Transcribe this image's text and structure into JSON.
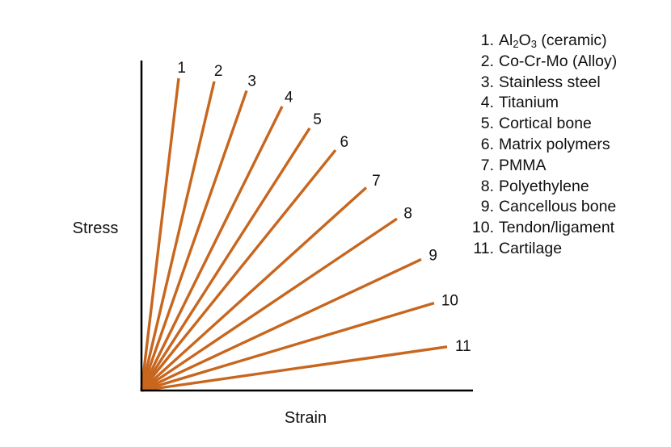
{
  "chart_data": {
    "type": "line",
    "xlabel": "Strain",
    "ylabel": "Stress",
    "colors": {
      "series": "#C8661E",
      "axis": "#000000",
      "text": "#111111"
    },
    "series": [
      {
        "label": "1",
        "name": "Al2O3 (ceramic)",
        "x": 0.23,
        "y": 1.0
      },
      {
        "label": "2",
        "name": "Co-Cr-Mo (Alloy)",
        "x": 0.45,
        "y": 0.99
      },
      {
        "label": "3",
        "name": "Stainless steel",
        "x": 0.65,
        "y": 0.96
      },
      {
        "label": "4",
        "name": "Titanium",
        "x": 0.87,
        "y": 0.91
      },
      {
        "label": "5",
        "name": "Cortical bone",
        "x": 1.04,
        "y": 0.84
      },
      {
        "label": "6",
        "name": "Matrix polymers",
        "x": 1.2,
        "y": 0.77
      },
      {
        "label": "7",
        "name": "PMMA",
        "x": 1.39,
        "y": 0.65
      },
      {
        "label": "8",
        "name": "Polyethylene",
        "x": 1.58,
        "y": 0.55
      },
      {
        "label": "9",
        "name": "Cancellous bone",
        "x": 1.73,
        "y": 0.42
      },
      {
        "label": "10",
        "name": "Tendon/ligament",
        "x": 1.81,
        "y": 0.28
      },
      {
        "label": "11",
        "name": "Cartilage",
        "x": 1.89,
        "y": 0.14
      }
    ]
  },
  "legend": {
    "items": [
      {
        "num": "1.",
        "text": "Al",
        "sub1": "2",
        "mid": "O",
        "sub2": "3",
        "after": " (ceramic)"
      },
      {
        "num": "2.",
        "text": "Co-Cr-Mo (Alloy)"
      },
      {
        "num": "3.",
        "text": "Stainless steel"
      },
      {
        "num": "4.",
        "text": "Titanium"
      },
      {
        "num": "5.",
        "text": "Cortical bone"
      },
      {
        "num": "6.",
        "text": "Matrix polymers"
      },
      {
        "num": "7.",
        "text": "PMMA"
      },
      {
        "num": "8.",
        "text": "Polyethylene"
      },
      {
        "num": "9.",
        "text": "Cancellous bone"
      },
      {
        "num": "10.",
        "text": "Tendon/ligament"
      },
      {
        "num": "11.",
        "text": "Cartilage"
      }
    ]
  }
}
